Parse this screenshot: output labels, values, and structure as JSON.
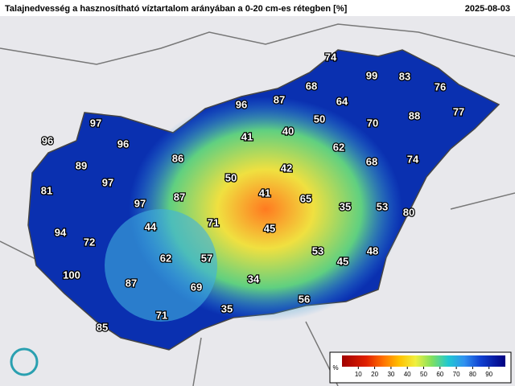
{
  "header": {
    "title": "Talajnedvesség a hasznosítható víztartalom arányában a 0-20 cm-es rétegben [%]",
    "date": "2025-08-03"
  },
  "map": {
    "labels": [
      74,
      99,
      83,
      76,
      68,
      96,
      87,
      64,
      50,
      70,
      88,
      77,
      97,
      41,
      40,
      62,
      96,
      96,
      86,
      68,
      74,
      89,
      42,
      97,
      50,
      81,
      41,
      87,
      65,
      35,
      53,
      80,
      97,
      71,
      44,
      45,
      94,
      72,
      62,
      57,
      53,
      45,
      48,
      100,
      87,
      69,
      34,
      56,
      35,
      71,
      85
    ]
  },
  "colorbar": {
    "unit": "%",
    "range": [
      0,
      100
    ],
    "ticks": [
      10,
      20,
      30,
      40,
      50,
      60,
      70,
      80,
      90
    ]
  }
}
